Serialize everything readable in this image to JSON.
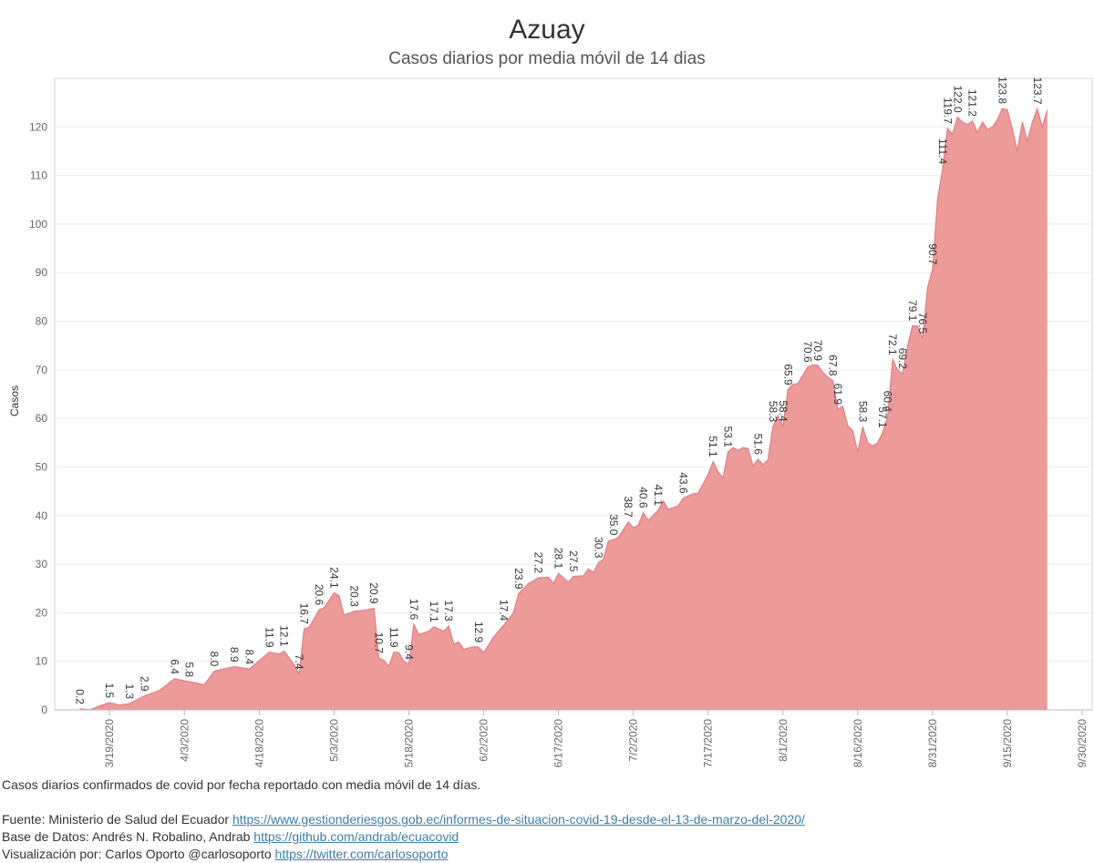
{
  "chart_data": {
    "type": "area",
    "title": "Azuay",
    "subtitle": "Casos diarios por media móvil de 14 dias",
    "y_label": "Casos",
    "color": "#ec9a9a",
    "line_color": "#e27f83",
    "grid": true,
    "xlim": [
      "3/8/2020",
      "10/2/2020"
    ],
    "xticks": [
      "3/19/2020",
      "4/3/2020",
      "4/18/2020",
      "5/3/2020",
      "5/18/2020",
      "6/2/2020",
      "6/17/2020",
      "7/2/2020",
      "7/17/2020",
      "8/1/2020",
      "8/16/2020",
      "8/31/2020",
      "9/15/2020",
      "9/30/2020"
    ],
    "ylim": [
      0,
      130
    ],
    "yticks": [
      0,
      10,
      20,
      30,
      40,
      50,
      60,
      70,
      80,
      90,
      100,
      110,
      120
    ],
    "x": [
      "3/13/2020",
      "3/15/2020",
      "3/17/2020",
      "3/19/2020",
      "3/21/2020",
      "3/23/2020",
      "3/26/2020",
      "3/29/2020",
      "4/1/2020",
      "4/4/2020",
      "4/7/2020",
      "4/9/2020",
      "4/13/2020",
      "4/16/2020",
      "4/20/2020",
      "4/22/2020",
      "4/23/2020",
      "4/25/2020",
      "4/26/2020",
      "4/27/2020",
      "4/28/2020",
      "4/30/2020",
      "5/1/2020",
      "5/3/2020",
      "5/4/2020",
      "5/5/2020",
      "5/7/2020",
      "5/9/2020",
      "5/11/2020",
      "5/12/2020",
      "5/13/2020",
      "5/14/2020",
      "5/15/2020",
      "5/16/2020",
      "5/17/2020",
      "5/18/2020",
      "5/19/2020",
      "5/20/2020",
      "5/22/2020",
      "5/23/2020",
      "5/25/2020",
      "5/26/2020",
      "5/27/2020",
      "5/28/2020",
      "5/29/2020",
      "5/31/2020",
      "6/1/2020",
      "6/2/2020",
      "6/4/2020",
      "6/6/2020",
      "6/8/2020",
      "6/9/2020",
      "6/11/2020",
      "6/13/2020",
      "6/15/2020",
      "6/16/2020",
      "6/17/2020",
      "6/19/2020",
      "6/20/2020",
      "6/22/2020",
      "6/23/2020",
      "6/24/2020",
      "6/25/2020",
      "6/26/2020",
      "6/27/2020",
      "6/28/2020",
      "6/29/2020",
      "7/1/2020",
      "7/2/2020",
      "7/3/2020",
      "7/4/2020",
      "7/5/2020",
      "7/7/2020",
      "7/8/2020",
      "7/9/2020",
      "7/11/2020",
      "7/12/2020",
      "7/14/2020",
      "7/15/2020",
      "7/17/2020",
      "7/18/2020",
      "7/19/2020",
      "7/20/2020",
      "7/21/2020",
      "7/22/2020",
      "7/23/2020",
      "7/24/2020",
      "7/25/2020",
      "7/26/2020",
      "7/27/2020",
      "7/28/2020",
      "7/29/2020",
      "7/30/2020",
      "7/31/2020",
      "8/1/2020",
      "8/2/2020",
      "8/3/2020",
      "8/4/2020",
      "8/6/2020",
      "8/7/2020",
      "8/8/2020",
      "8/9/2020",
      "8/10/2020",
      "8/11/2020",
      "8/12/2020",
      "8/13/2020",
      "8/14/2020",
      "8/15/2020",
      "8/16/2020",
      "8/17/2020",
      "8/18/2020",
      "8/19/2020",
      "8/20/2020",
      "8/21/2020",
      "8/22/2020",
      "8/23/2020",
      "8/24/2020",
      "8/25/2020",
      "8/26/2020",
      "8/27/2020",
      "8/28/2020",
      "8/29/2020",
      "8/30/2020",
      "8/31/2020",
      "9/1/2020",
      "9/2/2020",
      "9/3/2020",
      "9/4/2020",
      "9/5/2020",
      "9/6/2020",
      "9/7/2020",
      "9/8/2020",
      "9/9/2020",
      "9/10/2020",
      "9/11/2020",
      "9/12/2020",
      "9/13/2020",
      "9/14/2020",
      "9/15/2020",
      "9/16/2020",
      "9/17/2020",
      "9/18/2020",
      "9/19/2020",
      "9/20/2020",
      "9/21/2020",
      "9/22/2020",
      "9/23/2020"
    ],
    "values": [
      0.2,
      0,
      0.8,
      1.5,
      1.0,
      1.3,
      2.9,
      4.0,
      6.4,
      5.8,
      5.2,
      8.0,
      8.9,
      8.4,
      11.9,
      11.5,
      12.1,
      9.3,
      7.4,
      16.7,
      17,
      20.6,
      21,
      24.1,
      23.5,
      19.5,
      20.3,
      20.5,
      20.9,
      10.7,
      10.2,
      9.0,
      11.9,
      11.8,
      10.0,
      9.4,
      17.6,
      15.5,
      16.2,
      17.1,
      16.2,
      17.3,
      13.5,
      14,
      12.5,
      13,
      12.9,
      11.8,
      15,
      17.4,
      20,
      23.9,
      26,
      27.2,
      27.3,
      26,
      28.1,
      26.3,
      27.5,
      27.6,
      29,
      28.3,
      30.3,
      31,
      34.8,
      35.0,
      35.5,
      38.7,
      37.5,
      38,
      40.6,
      39,
      41.1,
      43,
      41.3,
      42,
      43.6,
      44.5,
      44.6,
      48.5,
      51.1,
      49,
      47.8,
      53.1,
      54,
      53.4,
      54,
      53.8,
      50.2,
      51.6,
      50.5,
      51.5,
      58.3,
      60.6,
      58.4,
      65.9,
      67,
      67.2,
      70.6,
      71,
      70.9,
      69.5,
      68.5,
      67.8,
      61.9,
      62.5,
      58.5,
      57.5,
      53,
      58.3,
      55,
      54.3,
      55,
      57.1,
      60.4,
      72.1,
      70,
      69.2,
      75,
      79.1,
      79,
      76.5,
      87,
      90.7,
      105,
      111.4,
      119.7,
      118.5,
      122.0,
      121,
      120.5,
      121.2,
      118.8,
      121,
      119.5,
      120,
      121.5,
      123.8,
      123.5,
      119.5,
      115,
      121,
      117,
      121,
      123.7,
      120,
      123.5
    ],
    "value_labels": [
      "0.2",
      null,
      null,
      "1.5",
      null,
      "1.3",
      "2.9",
      null,
      "6.4",
      "5.8",
      null,
      "8.0",
      "8.9",
      "8.4",
      "11.9",
      null,
      "12.1",
      null,
      "7.4",
      "16.7",
      null,
      "20.6",
      null,
      "24.1",
      null,
      null,
      "20.3",
      null,
      "20.9",
      "10.7",
      null,
      null,
      "11.9",
      null,
      null,
      "9.4",
      "17.6",
      null,
      null,
      "17.1",
      null,
      "17.3",
      null,
      null,
      null,
      null,
      "12.9",
      null,
      null,
      "17.4",
      null,
      "23.9",
      null,
      "27.2",
      null,
      null,
      "28.1",
      null,
      "27.5",
      null,
      null,
      null,
      "30.3",
      null,
      null,
      "35.0",
      null,
      "38.7",
      null,
      null,
      "40.6",
      null,
      "41.1",
      null,
      null,
      null,
      "43.6",
      null,
      null,
      null,
      "51.1",
      null,
      null,
      "53.1",
      null,
      null,
      null,
      null,
      null,
      "51.6",
      null,
      null,
      "58.3",
      null,
      "58.4",
      "65.9",
      null,
      null,
      "70.6",
      null,
      "70.9",
      null,
      null,
      "67.8",
      "61.9",
      null,
      null,
      null,
      null,
      "58.3",
      null,
      null,
      null,
      "57.1",
      "60.4",
      "72.1",
      null,
      "69.2",
      null,
      "79.1",
      null,
      "76.5",
      null,
      "90.7",
      null,
      "111.4",
      "119.7",
      null,
      "122.0",
      null,
      null,
      "121.2",
      null,
      null,
      null,
      null,
      null,
      "123.8",
      null,
      null,
      null,
      null,
      null,
      null,
      "123.7",
      null,
      null
    ]
  },
  "footer": {
    "note": "Casos diarios confirmados de covid por fecha reportado con media móvil de 14 días.",
    "source_label": "Fuente: Ministerio de Salud del Ecuador",
    "source_link": "https://www.gestionderiesgos.gob.ec/informes-de-situacion-covid-19-desde-el-13-de-marzo-del-2020/",
    "data_label": "Base de Datos: Andrés N. Robalino, Andrab",
    "data_link": "https://github.com/andrab/ecuacovid",
    "viz_label": "Visualización por: Carlos Oporto @carlosoporto",
    "viz_link": "https://twitter.com/carlosoporto"
  }
}
